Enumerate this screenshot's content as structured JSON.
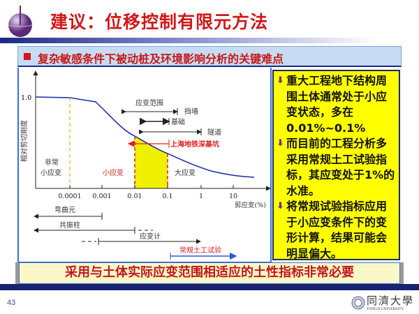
{
  "title": "建议：位移控制有限元方法",
  "header": "复杂敏感条件下被动桩及环境影响分析的关键难点",
  "diagram": {
    "y_axis_label": "相对剪切刚度",
    "y_tick": "1.0",
    "x_axis_label": "剪应变(%)",
    "x_ticks": [
      "0.0001",
      "0.001",
      "0.01",
      "0.1",
      "1",
      "10"
    ],
    "strain_range_label": "应变范围",
    "ranges": [
      {
        "label": "挡墙"
      },
      {
        "label": "基础"
      },
      {
        "label": "隧道"
      }
    ],
    "highlight_label": "上海地铁深基坑",
    "zones": {
      "very_small": [
        "非常",
        "小应变"
      ],
      "small": "小应变",
      "large": "大应变"
    },
    "tests": [
      {
        "label": "弯曲元"
      },
      {
        "label": "共振柱"
      },
      {
        "label": "应变计"
      },
      {
        "label": "常规土工试验"
      }
    ],
    "colors": {
      "curve": "#1a2aa0",
      "fill": "#f0f000",
      "highlight": "#e02020",
      "test_arrow": "#2a5ad8"
    }
  },
  "notes": [
    "重大工程地下结构周围土体通常处于小应变状态，多在0.01%~0.1%",
    "而目前的工程分析多采用常规土工试验指标，其应变处于1%的水准。",
    "将常规试验指标应用于小应变条件下的变形计算，结果可能会明显偏大。"
  ],
  "banner": "采用与土体实际应变范围相适应的土性指标非常必要",
  "page_number": "43",
  "university": {
    "cn": "同濟大學",
    "en": "TONGJI UNIVERSITY"
  }
}
